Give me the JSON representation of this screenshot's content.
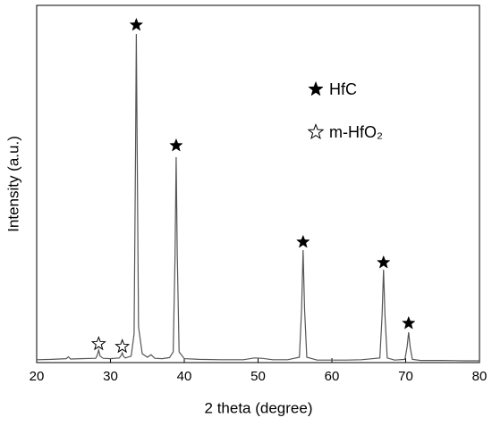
{
  "chart_data": {
    "type": "line",
    "xlabel": "2 theta (degree)",
    "ylabel": "Intensity (a.u.)",
    "xlim": [
      20,
      80
    ],
    "xticks": [
      20,
      30,
      40,
      50,
      60,
      70,
      80
    ],
    "ylim": [
      0,
      100
    ],
    "legend": "upper right",
    "series": [
      {
        "color": "#555555",
        "x": [
          20,
          22,
          24,
          24.3,
          24.6,
          26,
          28,
          28.2,
          28.4,
          28.6,
          29,
          30,
          31.2,
          31.45,
          31.6,
          31.75,
          32,
          32.8,
          33.2,
          33.4,
          33.5,
          33.6,
          33.8,
          34.3,
          35,
          35.5,
          36,
          37,
          38,
          38.5,
          38.75,
          38.9,
          39.05,
          39.3,
          40,
          42,
          45,
          48,
          49.5,
          50.5,
          52,
          54,
          55.6,
          55.9,
          56.1,
          56.3,
          56.6,
          58,
          60,
          62,
          64,
          66.5,
          66.8,
          67.0,
          67.2,
          67.5,
          68.5,
          69.9,
          70.2,
          70.4,
          70.6,
          70.9,
          72,
          75,
          78,
          80
        ],
        "values": [
          0.8,
          0.9,
          1.1,
          1.6,
          1.0,
          1.1,
          1.2,
          2.0,
          3.5,
          1.8,
          1.2,
          1.1,
          1.3,
          2.0,
          2.75,
          1.8,
          1.3,
          1.8,
          8,
          60,
          92,
          65,
          10,
          2.5,
          1.5,
          2.2,
          1.2,
          1.1,
          1.4,
          3,
          30,
          57.5,
          30,
          3,
          1.1,
          0.9,
          0.8,
          0.8,
          1.3,
          1.2,
          0.8,
          0.8,
          1.5,
          15,
          31.5,
          15,
          1.5,
          0.7,
          0.7,
          0.7,
          0.8,
          1.3,
          13,
          26,
          13,
          1.3,
          0.7,
          0.9,
          4.5,
          8.5,
          4.5,
          0.9,
          0.6,
          0.6,
          0.5,
          0.5
        ]
      },
      {
        "name": "HfC",
        "type": "scatter",
        "marker": "filled-star",
        "color": "#000000",
        "x": [
          33.5,
          38.9,
          56.1,
          67.0,
          70.4
        ],
        "values": [
          94.5,
          60.75,
          33.75,
          28,
          11
        ]
      },
      {
        "name": "m-HfO₂",
        "type": "scatter",
        "marker": "hollow-star",
        "color": "#000000",
        "x": [
          28.4,
          31.6
        ],
        "values": [
          5.25,
          4.5
        ]
      }
    ]
  }
}
